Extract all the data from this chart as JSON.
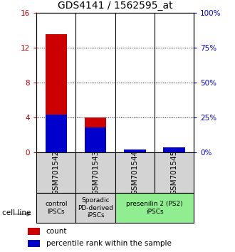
{
  "title": "GDS4141 / 1562595_at",
  "samples": [
    "GSM701542",
    "GSM701543",
    "GSM701544",
    "GSM701545"
  ],
  "red_values": [
    13.5,
    4.0,
    0.1,
    0.35
  ],
  "blue_values_pct": [
    27.0,
    18.0,
    2.0,
    3.5
  ],
  "ylim_left": [
    0,
    16
  ],
  "ylim_right": [
    0,
    100
  ],
  "yticks_left": [
    0,
    4,
    8,
    12,
    16
  ],
  "yticks_right": [
    0,
    25,
    50,
    75,
    100
  ],
  "ytick_labels_left": [
    "0",
    "4",
    "8",
    "12",
    "16"
  ],
  "ytick_labels_right": [
    "0%",
    "25%",
    "50%",
    "75%",
    "100%"
  ],
  "grid_values": [
    4,
    8,
    12
  ],
  "red_color": "#cc0000",
  "blue_color": "#0000cc",
  "group_info": [
    {
      "label": "control\nIPSCs",
      "color": "#d3d3d3",
      "start": 0,
      "end": 1
    },
    {
      "label": "Sporadic\nPD-derived\niPSCs",
      "color": "#d3d3d3",
      "start": 1,
      "end": 2
    },
    {
      "label": "presenilin 2 (PS2)\niPSCs",
      "color": "#90ee90",
      "start": 2,
      "end": 4
    }
  ],
  "cell_line_label": "cell line",
  "legend_red": "count",
  "legend_blue": "percentile rank within the sample",
  "title_fontsize": 10,
  "tick_fontsize": 7.5,
  "group_fontsize": 6.5,
  "legend_fontsize": 7.5
}
